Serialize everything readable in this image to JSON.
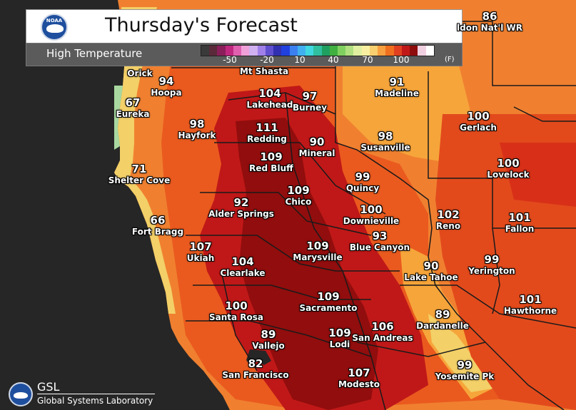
{
  "header": {
    "title": "Thursday's Forecast",
    "subtitle": "High Temperature",
    "scale_ticks": [
      "-50",
      "-20",
      "10",
      "40",
      "70",
      "100"
    ],
    "scale_unit": "(F)",
    "scale_colors": [
      "#3a3a3a",
      "#5a2a3a",
      "#8a1e5a",
      "#c02880",
      "#e060b0",
      "#f0a0d8",
      "#d0b0f0",
      "#a080e8",
      "#6050d0",
      "#3030b0",
      "#2040e0",
      "#3a80f0",
      "#40b0f0",
      "#40d8e0",
      "#30c0a0",
      "#20a060",
      "#40b040",
      "#80d060",
      "#b0e080",
      "#e0f0a0",
      "#f8f0a0",
      "#f8d070",
      "#f8a040",
      "#f07020",
      "#e04020",
      "#c01818",
      "#8e0c0c",
      "#f0d0e0",
      "#ffffff"
    ]
  },
  "logo_noaa": "NOAA",
  "footer": {
    "org_short": "GSL",
    "org_full": "Global Systems Laboratory"
  },
  "cities": [
    {
      "value": "86",
      "name": "ldon Nat'l WR"
    },
    {
      "value": "",
      "name": "Orick"
    },
    {
      "value": "",
      "name": "Mt Shasta"
    },
    {
      "value": "94",
      "name": "Hoopa"
    },
    {
      "value": "67",
      "name": "Eureka"
    },
    {
      "value": "104",
      "name": "Lakehead"
    },
    {
      "value": "97",
      "name": "Burney"
    },
    {
      "value": "91",
      "name": "Madeline"
    },
    {
      "value": "98",
      "name": "Hayfork"
    },
    {
      "value": "111",
      "name": "Redding"
    },
    {
      "value": "90",
      "name": "Mineral"
    },
    {
      "value": "98",
      "name": "Susanville"
    },
    {
      "value": "100",
      "name": "Gerlach"
    },
    {
      "value": "109",
      "name": "Red Bluff"
    },
    {
      "value": "71",
      "name": "Shelter Cove"
    },
    {
      "value": "99",
      "name": "Quincy"
    },
    {
      "value": "100",
      "name": "Lovelock"
    },
    {
      "value": "109",
      "name": "Chico"
    },
    {
      "value": "92",
      "name": "Alder Springs"
    },
    {
      "value": "100",
      "name": "Downieville"
    },
    {
      "value": "66",
      "name": "Fort Bragg"
    },
    {
      "value": "102",
      "name": "Reno"
    },
    {
      "value": "101",
      "name": "Fallon"
    },
    {
      "value": "93",
      "name": "Blue Canyon"
    },
    {
      "value": "109",
      "name": "Marysville"
    },
    {
      "value": "107",
      "name": "Ukiah"
    },
    {
      "value": "104",
      "name": "Clearlake"
    },
    {
      "value": "99",
      "name": "Yerington"
    },
    {
      "value": "90",
      "name": "Lake Tahoe"
    },
    {
      "value": "109",
      "name": "Sacramento"
    },
    {
      "value": "101",
      "name": "Hawthorne"
    },
    {
      "value": "100",
      "name": "Santa Rosa"
    },
    {
      "value": "89",
      "name": "Dardanelle"
    },
    {
      "value": "106",
      "name": "San Andreas"
    },
    {
      "value": "89",
      "name": "Vallejo"
    },
    {
      "value": "109",
      "name": "Lodi"
    },
    {
      "value": "82",
      "name": "San Francisco"
    },
    {
      "value": "107",
      "name": "Modesto"
    },
    {
      "value": "99",
      "name": "Yosemite Pk"
    }
  ]
}
